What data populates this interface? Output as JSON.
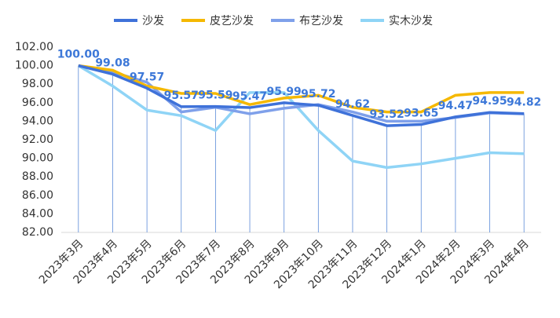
{
  "chart_data": {
    "type": "line",
    "categories": [
      "2023年3月",
      "2023年4月",
      "2023年5月",
      "2023年6月",
      "2023年7月",
      "2023年8月",
      "2023年9月",
      "2023年10月",
      "2023年11月",
      "2023年12月",
      "2024年1月",
      "2024年2月",
      "2024年3月",
      "2024年4月"
    ],
    "series": [
      {
        "name": "沙发",
        "color": "#3f72d9",
        "values": [
          100,
          99.08,
          97.57,
          95.57,
          95.59,
          95.47,
          95.99,
          95.72,
          94.62,
          93.52,
          93.65,
          94.47,
          94.95,
          94.82
        ],
        "value_labels": [
          "100.00",
          "99.08",
          "97.57",
          "95.57",
          "95.59",
          "95.47",
          "95.99",
          "95.72",
          "94.62",
          "93.52",
          "93.65",
          "94.47",
          "94.95",
          "94.82"
        ]
      },
      {
        "name": "皮艺沙发",
        "color": "#f5b800",
        "values": [
          100,
          99.5,
          97.8,
          97.0,
          97.0,
          95.8,
          96.5,
          96.8,
          95.5,
          95.0,
          95.0,
          96.8,
          97.1,
          97.1
        ]
      },
      {
        "name": "布艺沙发",
        "color": "#7fa0ea",
        "values": [
          100,
          99.3,
          98.2,
          95.0,
          95.5,
          94.8,
          95.4,
          95.8,
          95.0,
          94.0,
          94.0,
          94.4,
          94.9,
          94.8
        ]
      },
      {
        "name": "实木沙发",
        "color": "#8fd4f6",
        "values": [
          100,
          97.8,
          95.2,
          94.6,
          93.0,
          97.1,
          97.1,
          93.0,
          89.7,
          89.0,
          89.4,
          90.0,
          90.6,
          90.5
        ]
      }
    ],
    "ylim": [
      82,
      102
    ],
    "yticks": [
      {
        "value": 82,
        "label": "82.00"
      },
      {
        "value": 84,
        "label": "84.00"
      },
      {
        "value": 86,
        "label": "86.00"
      },
      {
        "value": 88,
        "label": "88.00"
      },
      {
        "value": 90,
        "label": "90.00"
      },
      {
        "value": 92,
        "label": "92.00"
      },
      {
        "value": 94,
        "label": "94.00"
      },
      {
        "value": 96,
        "label": "96.00"
      },
      {
        "value": 98,
        "label": "98.00"
      },
      {
        "value": 100,
        "label": "100.00"
      },
      {
        "value": 102,
        "label": "102.00"
      }
    ]
  }
}
